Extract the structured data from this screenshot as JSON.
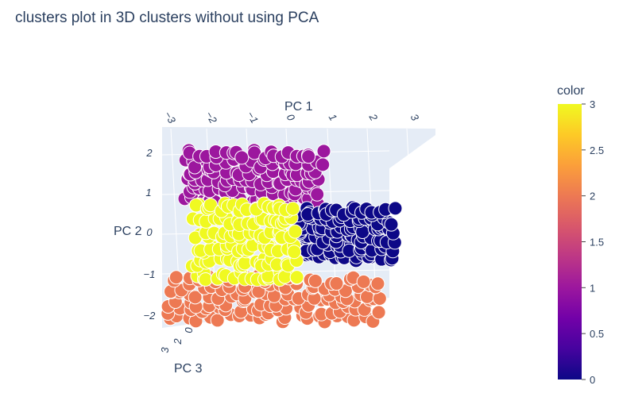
{
  "chart_data": {
    "type": "scatter3d",
    "title": "clusters plot in 3D clusters without using PCA",
    "axes": {
      "x": {
        "label": "PC 1",
        "ticks": [
          "−3",
          "−2",
          "−1",
          "0",
          "1",
          "2",
          "3"
        ]
      },
      "y": {
        "label": "PC 2",
        "ticks": [
          "2",
          "1",
          "0",
          "−1",
          "−2"
        ]
      },
      "z": {
        "label": "PC 3",
        "ticks": [
          "3",
          "2",
          "0"
        ]
      }
    },
    "colorbar": {
      "title": "color",
      "range": [
        0,
        3
      ],
      "ticks": [
        "3",
        "2.5",
        "2",
        "1.5",
        "1",
        "0.5",
        "0"
      ],
      "colors": [
        "#0d0887",
        "#46039f",
        "#7201a8",
        "#9c179e",
        "#bd3786",
        "#d8576b",
        "#ed7953",
        "#fb9f3a",
        "#fdca26",
        "#f0f921"
      ]
    },
    "clusters": [
      {
        "color_value": 0,
        "hex": "#0d0887",
        "pc1_range": [
          0.3,
          2.6
        ],
        "pc2_range": [
          -0.6,
          0.6
        ]
      },
      {
        "color_value": 1,
        "hex": "#9c179e",
        "pc1_range": [
          -2.4,
          0.8
        ],
        "pc2_range": [
          0.9,
          2.1
        ]
      },
      {
        "color_value": 2,
        "hex": "#ed7953",
        "pc1_range": [
          -2.8,
          2.2
        ],
        "pc2_range": [
          -2.2,
          -1.2
        ]
      },
      {
        "color_value": 3,
        "hex": "#f0f921",
        "pc1_range": [
          -2.2,
          0.2
        ],
        "pc2_range": [
          -1.1,
          0.7
        ]
      }
    ]
  }
}
